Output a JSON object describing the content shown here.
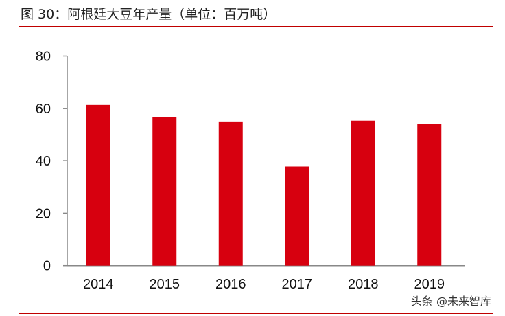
{
  "title": "图 30：阿根廷大豆年产量（单位：百万吨）",
  "watermark": "头条 @未来智库",
  "chart_data": {
    "type": "bar",
    "title": "图 30：阿根廷大豆年产量（单位：百万吨）",
    "categories": [
      "2014",
      "2015",
      "2016",
      "2017",
      "2018",
      "2019"
    ],
    "values": [
      61.3,
      56.7,
      55.0,
      37.8,
      55.3,
      54.0
    ],
    "ylim": [
      0,
      80
    ],
    "yticks": [
      0,
      20,
      40,
      60,
      80
    ],
    "xlabel": "",
    "ylabel": "",
    "grid": false,
    "bar_color": "#d7000f"
  }
}
